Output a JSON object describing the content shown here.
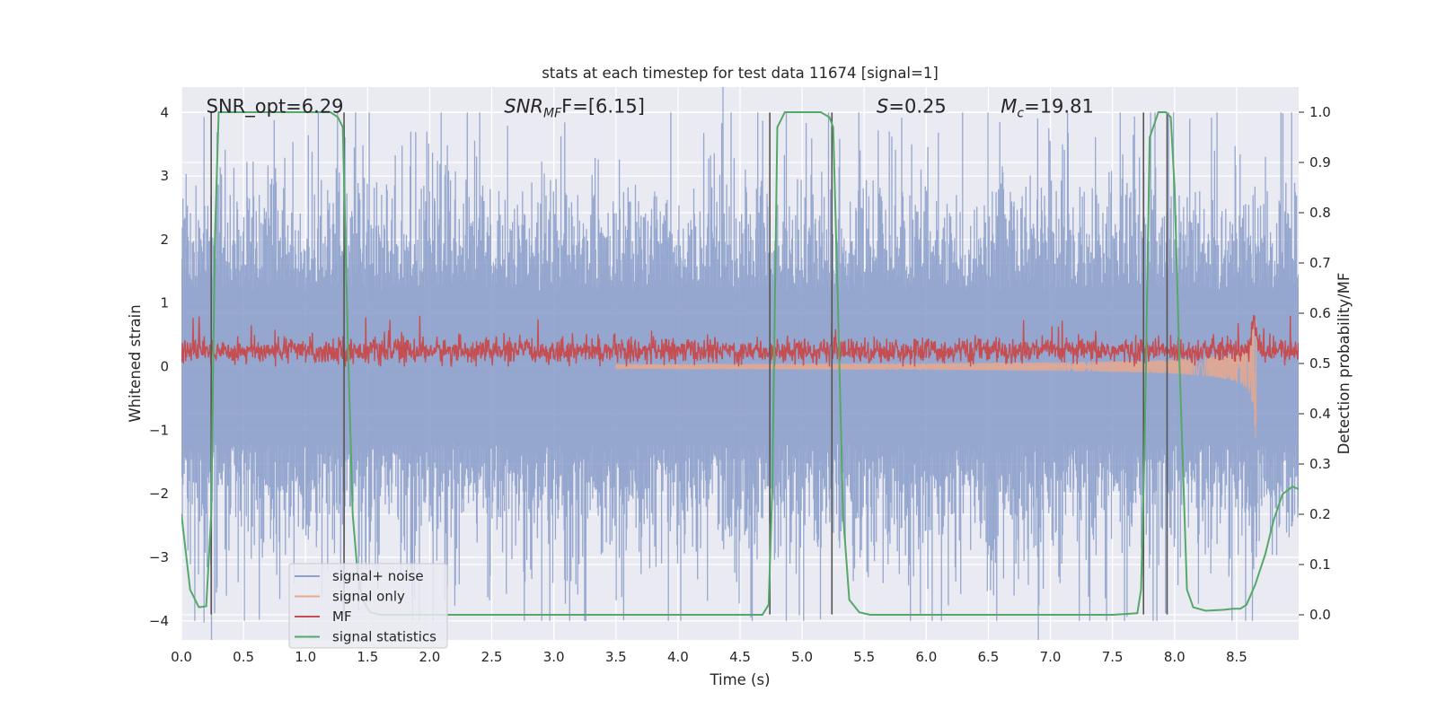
{
  "chart_data": {
    "type": "line",
    "title": "stats at each timestep for test data 11674 [signal=1]",
    "xlabel": "Time (s)",
    "ylabel": "Whitened strain",
    "ylabel_right": "Detection probability/MF",
    "xlim": [
      0.0,
      9.0
    ],
    "ylim": [
      -4.3,
      4.4
    ],
    "ylim_right": [
      -0.05,
      1.05
    ],
    "xticks": [
      0.0,
      0.5,
      1.0,
      1.5,
      2.0,
      2.5,
      3.0,
      3.5,
      4.0,
      4.5,
      5.0,
      5.5,
      6.0,
      6.5,
      7.0,
      7.5,
      8.0,
      8.5
    ],
    "xtick_labels": [
      "0.0",
      "0.5",
      "1.0",
      "1.5",
      "2.0",
      "2.5",
      "3.0",
      "3.5",
      "4.0",
      "4.5",
      "5.0",
      "5.5",
      "6.0",
      "6.5",
      "7.0",
      "7.5",
      "8.0",
      "8.5"
    ],
    "yticks": [
      -4,
      -3,
      -2,
      -1,
      0,
      1,
      2,
      3,
      4
    ],
    "ytick_labels": [
      "−4",
      "−3",
      "−2",
      "−1",
      "0",
      "1",
      "2",
      "3",
      "4"
    ],
    "yticks_right": [
      0.0,
      0.1,
      0.2,
      0.3,
      0.4,
      0.5,
      0.6,
      0.7,
      0.8,
      0.9,
      1.0
    ],
    "ytick_labels_right": [
      "0.0",
      "0.1",
      "0.2",
      "0.3",
      "0.4",
      "0.5",
      "0.6",
      "0.7",
      "0.8",
      "0.9",
      "1.0"
    ],
    "grid": true,
    "legend_position": "lower-left",
    "annotations": [
      {
        "text": "SNR_opt=6.29",
        "x": 0.2
      },
      {
        "text_main": "SNR",
        "text_sub": "MF",
        "text_rest": "F=[6.15]",
        "x": 2.6
      },
      {
        "text_main": "S",
        "text_rest": "=0.25",
        "x": 5.6
      },
      {
        "text_main": "M",
        "text_sub": "c",
        "text_rest": "=19.81",
        "x": 6.6
      }
    ],
    "vertical_lines_x": [
      0.24,
      1.31,
      4.74,
      5.24,
      7.75,
      7.94
    ],
    "series": [
      {
        "name": "signal+ noise",
        "color": "#8da0cb",
        "kind": "noise",
        "axis": "left",
        "typical_amplitude": 1.6,
        "max_amplitude": 4.0
      },
      {
        "name": "signal only",
        "color": "#e8a88e",
        "kind": "chirp",
        "axis": "left",
        "merger_time": 8.66,
        "peak_amplitude": 1.3
      },
      {
        "name": "MF",
        "color": "#c44e52",
        "kind": "mf",
        "axis": "left",
        "typical_value": 0.25,
        "max_value": 0.8
      },
      {
        "name": "signal statistics",
        "color": "#55a868",
        "kind": "line",
        "axis": "right",
        "x": [
          0.0,
          0.07,
          0.14,
          0.2,
          0.24,
          0.27,
          0.3,
          0.5,
          1.0,
          1.2,
          1.26,
          1.3,
          1.34,
          1.38,
          1.42,
          1.46,
          1.52,
          1.6,
          2.0,
          3.0,
          4.0,
          4.68,
          4.73,
          4.76,
          4.8,
          4.86,
          5.0,
          5.15,
          5.22,
          5.25,
          5.29,
          5.33,
          5.38,
          5.46,
          5.55,
          6.0,
          7.0,
          7.5,
          7.7,
          7.73,
          7.76,
          7.8,
          7.87,
          7.93,
          7.97,
          8.0,
          8.04,
          8.1,
          8.15,
          8.25,
          8.4,
          8.47,
          8.53,
          8.58,
          8.65,
          8.73,
          8.8,
          8.87,
          8.95,
          9.0
        ],
        "y": [
          0.2,
          0.05,
          0.015,
          0.017,
          0.2,
          0.75,
          1.0,
          1.0,
          1.0,
          1.0,
          0.99,
          0.97,
          0.55,
          0.2,
          0.08,
          0.03,
          0.005,
          0.0,
          0.0,
          0.0,
          0.0,
          0.0,
          0.02,
          0.25,
          0.97,
          1.0,
          1.0,
          1.0,
          0.99,
          0.97,
          0.6,
          0.2,
          0.03,
          0.005,
          0.0,
          0.0,
          0.0,
          0.0,
          0.003,
          0.05,
          0.35,
          0.95,
          1.0,
          1.0,
          0.99,
          0.85,
          0.5,
          0.05,
          0.015,
          0.008,
          0.01,
          0.012,
          0.012,
          0.02,
          0.06,
          0.12,
          0.19,
          0.24,
          0.255,
          0.25
        ]
      }
    ]
  }
}
